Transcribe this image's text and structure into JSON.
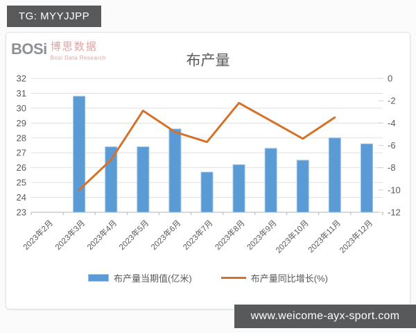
{
  "banners": {
    "tg": "TG: MYYJJPP",
    "site": "www.weicome-ayx-sport.com"
  },
  "logo": {
    "brand": "BOSi",
    "brand_cn": "博思数据",
    "brand_sub": "Bosi Data Research"
  },
  "colors": {
    "banner_bg": "#58595b",
    "bar": "#5b9bd5",
    "bar_edge": "#9dc3e6",
    "line": "#d5722a",
    "axis_text": "#595959",
    "grid": "#dfdfdf",
    "axis_line": "#b3b3b3"
  },
  "chart_data": {
    "type": "bar",
    "title": "布产量",
    "categories": [
      "2023年2月",
      "2023年3月",
      "2023年4月",
      "2023年5月",
      "2023年6月",
      "2023年7月",
      "2023年8月",
      "2023年9月",
      "2023年10月",
      "2023年11月",
      "2023年12月"
    ],
    "series": [
      {
        "name": "布产量当期值(亿米)",
        "type": "bar",
        "axis": "left",
        "color": "#5b9bd5",
        "values": [
          null,
          30.8,
          27.4,
          27.4,
          28.6,
          25.7,
          26.2,
          27.3,
          26.5,
          28.0,
          27.6
        ]
      },
      {
        "name": "布产量同比增长(%)",
        "type": "line",
        "axis": "right",
        "color": "#d5722a",
        "values": [
          null,
          -10.0,
          -7.3,
          -2.9,
          -4.8,
          -5.7,
          -2.2,
          -3.8,
          -5.4,
          -3.5,
          null
        ]
      }
    ],
    "left_axis": {
      "min": 23,
      "max": 32,
      "ticks": [
        32,
        31,
        30,
        29,
        28,
        27,
        26,
        25,
        24,
        23
      ]
    },
    "right_axis": {
      "min": -12,
      "max": 0,
      "ticks": [
        0,
        -2,
        -4,
        -6,
        -8,
        -10,
        -12
      ]
    },
    "grid": true,
    "legend_position": "bottom"
  }
}
